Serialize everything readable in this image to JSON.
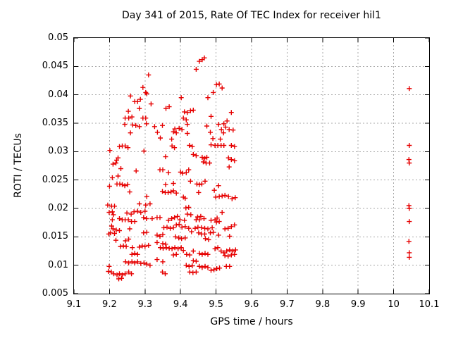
{
  "colors": {
    "marker": "#e60000",
    "grid": "#a8a8a8",
    "axis": "#000000",
    "text": "#000000",
    "background": "#ffffff"
  },
  "chart_data": {
    "type": "scatter",
    "title": "Day 341 of 2015, Rate Of TEC Index for receiver hil1",
    "xlabel": "GPS time / hours",
    "ylabel": "ROTI / TECUs",
    "xlim": [
      9.1,
      10.1
    ],
    "ylim": [
      0.005,
      0.05
    ],
    "grid": true,
    "legend": "none",
    "marker": "plus",
    "xticks": [
      {
        "v": 9.1,
        "label": "9.1"
      },
      {
        "v": 9.2,
        "label": "9.2"
      },
      {
        "v": 9.3,
        "label": "9.3"
      },
      {
        "v": 9.4,
        "label": "9.4"
      },
      {
        "v": 9.5,
        "label": "9.5"
      },
      {
        "v": 9.6,
        "label": "9.6"
      },
      {
        "v": 9.7,
        "label": "9.7"
      },
      {
        "v": 9.8,
        "label": "9.8"
      },
      {
        "v": 9.9,
        "label": "9.9"
      },
      {
        "v": 10.0,
        "label": "10"
      },
      {
        "v": 10.1,
        "label": "10.1"
      }
    ],
    "yticks": [
      {
        "v": 0.005,
        "label": "0.005"
      },
      {
        "v": 0.01,
        "label": "0.01"
      },
      {
        "v": 0.015,
        "label": "0.015"
      },
      {
        "v": 0.02,
        "label": "0.02"
      },
      {
        "v": 0.025,
        "label": "0.025"
      },
      {
        "v": 0.03,
        "label": "0.03"
      },
      {
        "v": 0.035,
        "label": "0.035"
      },
      {
        "v": 0.04,
        "label": "0.04"
      },
      {
        "v": 0.045,
        "label": "0.045"
      },
      {
        "v": 0.05,
        "label": "0.05"
      }
    ],
    "points": [
      [
        9.31,
        0.0435
      ],
      [
        9.294,
        0.0413
      ],
      [
        9.302,
        0.0404
      ],
      [
        9.305,
        0.0402
      ],
      [
        9.259,
        0.0398
      ],
      [
        9.271,
        0.0388
      ],
      [
        9.279,
        0.0388
      ],
      [
        9.287,
        0.0392
      ],
      [
        9.317,
        0.0384
      ],
      [
        9.284,
        0.0376
      ],
      [
        9.253,
        0.0371
      ],
      [
        9.244,
        0.0359
      ],
      [
        9.254,
        0.0359
      ],
      [
        9.263,
        0.0361
      ],
      [
        9.294,
        0.0359
      ],
      [
        9.302,
        0.0359
      ],
      [
        9.453,
        0.0459
      ],
      [
        9.461,
        0.0462
      ],
      [
        9.467,
        0.0465
      ],
      [
        9.444,
        0.0445
      ],
      [
        9.501,
        0.0418
      ],
      [
        9.509,
        0.0419
      ],
      [
        9.517,
        0.0412
      ],
      [
        9.492,
        0.0404
      ],
      [
        9.477,
        0.0395
      ],
      [
        9.402,
        0.0395
      ],
      [
        9.359,
        0.0376
      ],
      [
        9.368,
        0.0379
      ],
      [
        9.411,
        0.037
      ],
      [
        9.419,
        0.0369
      ],
      [
        9.428,
        0.0372
      ],
      [
        9.436,
        0.0373
      ],
      [
        9.486,
        0.0362
      ],
      [
        9.543,
        0.0369
      ],
      [
        9.408,
        0.0359
      ],
      [
        9.416,
        0.0356
      ],
      [
        9.531,
        0.0354
      ],
      [
        9.243,
        0.0348
      ],
      [
        9.265,
        0.0347
      ],
      [
        9.274,
        0.0346
      ],
      [
        9.284,
        0.0344
      ],
      [
        9.304,
        0.0349
      ],
      [
        9.259,
        0.0333
      ],
      [
        9.201,
        0.0302
      ],
      [
        9.228,
        0.0309
      ],
      [
        9.236,
        0.031
      ],
      [
        9.244,
        0.031
      ],
      [
        9.252,
        0.0307
      ],
      [
        9.297,
        0.0301
      ],
      [
        9.22,
        0.0285
      ],
      [
        9.21,
        0.0278
      ],
      [
        9.218,
        0.028
      ],
      [
        9.224,
        0.0289
      ],
      [
        9.232,
        0.027
      ],
      [
        9.275,
        0.0266
      ],
      [
        9.208,
        0.0254
      ],
      [
        9.224,
        0.0257
      ],
      [
        9.221,
        0.0243
      ],
      [
        9.229,
        0.0243
      ],
      [
        9.236,
        0.0242
      ],
      [
        9.243,
        0.024
      ],
      [
        9.251,
        0.0242
      ],
      [
        9.2,
        0.0239
      ],
      [
        9.257,
        0.0229
      ],
      [
        9.305,
        0.0221
      ],
      [
        9.195,
        0.0206
      ],
      [
        9.206,
        0.0204
      ],
      [
        9.214,
        0.0204
      ],
      [
        9.284,
        0.0208
      ],
      [
        9.302,
        0.0206
      ],
      [
        9.314,
        0.0208
      ],
      [
        9.335,
        0.0334
      ],
      [
        9.343,
        0.0324
      ],
      [
        9.38,
        0.0335
      ],
      [
        9.388,
        0.0333
      ],
      [
        9.384,
        0.034
      ],
      [
        9.396,
        0.0341
      ],
      [
        9.419,
        0.0348
      ],
      [
        9.474,
        0.0345
      ],
      [
        9.484,
        0.0334
      ],
      [
        9.507,
        0.0348
      ],
      [
        9.522,
        0.0349
      ],
      [
        9.527,
        0.0343
      ],
      [
        9.537,
        0.0339
      ],
      [
        9.521,
        0.0333
      ],
      [
        9.548,
        0.0338
      ],
      [
        9.375,
        0.0322
      ],
      [
        9.491,
        0.0323
      ],
      [
        9.512,
        0.0322
      ],
      [
        9.349,
        0.0346
      ],
      [
        9.327,
        0.0344
      ],
      [
        9.515,
        0.0339
      ],
      [
        9.404,
        0.0339
      ],
      [
        9.419,
        0.0332
      ],
      [
        9.376,
        0.031
      ],
      [
        9.383,
        0.0307
      ],
      [
        9.425,
        0.0311
      ],
      [
        9.433,
        0.0309
      ],
      [
        9.486,
        0.0312
      ],
      [
        9.497,
        0.0311
      ],
      [
        9.505,
        0.0311
      ],
      [
        9.514,
        0.0311
      ],
      [
        9.522,
        0.0311
      ],
      [
        9.543,
        0.0311
      ],
      [
        9.552,
        0.0309
      ],
      [
        9.358,
        0.0291
      ],
      [
        9.436,
        0.0295
      ],
      [
        9.444,
        0.0293
      ],
      [
        9.461,
        0.029
      ],
      [
        9.468,
        0.0288
      ],
      [
        9.474,
        0.029
      ],
      [
        9.464,
        0.0282
      ],
      [
        9.472,
        0.028
      ],
      [
        9.482,
        0.028
      ],
      [
        9.535,
        0.0289
      ],
      [
        9.543,
        0.0286
      ],
      [
        9.552,
        0.0284
      ],
      [
        9.537,
        0.0273
      ],
      [
        9.342,
        0.0268
      ],
      [
        9.35,
        0.0268
      ],
      [
        9.366,
        0.0263
      ],
      [
        9.4,
        0.0264
      ],
      [
        9.406,
        0.0262
      ],
      [
        9.416,
        0.0263
      ],
      [
        9.423,
        0.0268
      ],
      [
        9.428,
        0.0248
      ],
      [
        9.446,
        0.0243
      ],
      [
        9.453,
        0.0242
      ],
      [
        9.46,
        0.0243
      ],
      [
        9.469,
        0.0248
      ],
      [
        9.358,
        0.0242
      ],
      [
        9.38,
        0.0244
      ],
      [
        9.349,
        0.023
      ],
      [
        9.357,
        0.0228
      ],
      [
        9.365,
        0.0228
      ],
      [
        9.373,
        0.0229
      ],
      [
        9.38,
        0.0231
      ],
      [
        9.388,
        0.0227
      ],
      [
        9.408,
        0.022
      ],
      [
        9.413,
        0.0218
      ],
      [
        9.451,
        0.0228
      ],
      [
        9.495,
        0.0232
      ],
      [
        9.507,
        0.024
      ],
      [
        9.499,
        0.022
      ],
      [
        9.509,
        0.0221
      ],
      [
        9.517,
        0.0222
      ],
      [
        9.525,
        0.0223
      ],
      [
        9.535,
        0.0221
      ],
      [
        9.545,
        0.0217
      ],
      [
        9.554,
        0.0219
      ],
      [
        9.415,
        0.0201
      ],
      [
        9.423,
        0.0202
      ],
      [
        9.199,
        0.0193
      ],
      [
        9.208,
        0.0194
      ],
      [
        9.211,
        0.0189
      ],
      [
        9.249,
        0.0192
      ],
      [
        9.261,
        0.019
      ],
      [
        9.269,
        0.0194
      ],
      [
        9.279,
        0.0195
      ],
      [
        9.288,
        0.0193
      ],
      [
        9.3,
        0.0195
      ],
      [
        9.296,
        0.0184
      ],
      [
        9.304,
        0.0182
      ],
      [
        9.228,
        0.0182
      ],
      [
        9.236,
        0.018
      ],
      [
        9.244,
        0.018
      ],
      [
        9.253,
        0.018
      ],
      [
        9.262,
        0.0177
      ],
      [
        9.271,
        0.0177
      ],
      [
        9.208,
        0.018
      ],
      [
        9.206,
        0.0169
      ],
      [
        9.21,
        0.0164
      ],
      [
        9.219,
        0.0162
      ],
      [
        9.228,
        0.0161
      ],
      [
        9.257,
        0.0164
      ],
      [
        9.198,
        0.0155
      ],
      [
        9.203,
        0.0157
      ],
      [
        9.214,
        0.0156
      ],
      [
        9.296,
        0.0157
      ],
      [
        9.305,
        0.0158
      ],
      [
        9.32,
        0.0182
      ],
      [
        9.218,
        0.0144
      ],
      [
        9.245,
        0.0143
      ],
      [
        9.254,
        0.0146
      ],
      [
        9.231,
        0.0133
      ],
      [
        9.239,
        0.0134
      ],
      [
        9.247,
        0.0133
      ],
      [
        9.264,
        0.0131
      ],
      [
        9.284,
        0.0132
      ],
      [
        9.292,
        0.0134
      ],
      [
        9.3,
        0.0133
      ],
      [
        9.31,
        0.0135
      ],
      [
        9.263,
        0.0119
      ],
      [
        9.271,
        0.0121
      ],
      [
        9.279,
        0.0119
      ],
      [
        9.245,
        0.0106
      ],
      [
        9.254,
        0.0104
      ],
      [
        9.263,
        0.0106
      ],
      [
        9.271,
        0.0104
      ],
      [
        9.279,
        0.0106
      ],
      [
        9.288,
        0.0103
      ],
      [
        9.297,
        0.0104
      ],
      [
        9.305,
        0.0102
      ],
      [
        9.314,
        0.01
      ],
      [
        9.199,
        0.0098
      ],
      [
        9.197,
        0.0089
      ],
      [
        9.205,
        0.0088
      ],
      [
        9.212,
        0.0085
      ],
      [
        9.221,
        0.0083
      ],
      [
        9.228,
        0.0085
      ],
      [
        9.236,
        0.0083
      ],
      [
        9.244,
        0.0085
      ],
      [
        9.254,
        0.0088
      ],
      [
        9.262,
        0.0085
      ],
      [
        9.226,
        0.0076
      ],
      [
        9.234,
        0.0077
      ],
      [
        9.334,
        0.0184
      ],
      [
        9.342,
        0.0184
      ],
      [
        9.366,
        0.0179
      ],
      [
        9.375,
        0.0182
      ],
      [
        9.383,
        0.0184
      ],
      [
        9.391,
        0.0186
      ],
      [
        9.398,
        0.018
      ],
      [
        9.411,
        0.0179
      ],
      [
        9.419,
        0.019
      ],
      [
        9.429,
        0.0189
      ],
      [
        9.444,
        0.018
      ],
      [
        9.453,
        0.018
      ],
      [
        9.448,
        0.0185
      ],
      [
        9.457,
        0.0186
      ],
      [
        9.466,
        0.0182
      ],
      [
        9.486,
        0.0179
      ],
      [
        9.497,
        0.018
      ],
      [
        9.503,
        0.0183
      ],
      [
        9.501,
        0.0176
      ],
      [
        9.509,
        0.0177
      ],
      [
        9.517,
        0.0193
      ],
      [
        9.353,
        0.0166
      ],
      [
        9.362,
        0.0167
      ],
      [
        9.371,
        0.0165
      ],
      [
        9.38,
        0.0166
      ],
      [
        9.388,
        0.0171
      ],
      [
        9.396,
        0.0172
      ],
      [
        9.404,
        0.0167
      ],
      [
        9.413,
        0.0168
      ],
      [
        9.423,
        0.0165
      ],
      [
        9.431,
        0.0159
      ],
      [
        9.441,
        0.0165
      ],
      [
        9.449,
        0.0167
      ],
      [
        9.459,
        0.0166
      ],
      [
        9.468,
        0.0165
      ],
      [
        9.477,
        0.0164
      ],
      [
        9.489,
        0.0166
      ],
      [
        9.525,
        0.0164
      ],
      [
        9.534,
        0.0165
      ],
      [
        9.543,
        0.0168
      ],
      [
        9.552,
        0.0171
      ],
      [
        9.334,
        0.0153
      ],
      [
        9.342,
        0.0151
      ],
      [
        9.35,
        0.0154
      ],
      [
        9.386,
        0.015
      ],
      [
        9.395,
        0.0148
      ],
      [
        9.403,
        0.0147
      ],
      [
        9.413,
        0.0148
      ],
      [
        9.451,
        0.0157
      ],
      [
        9.459,
        0.0155
      ],
      [
        9.468,
        0.0155
      ],
      [
        9.484,
        0.0157
      ],
      [
        9.492,
        0.0158
      ],
      [
        9.47,
        0.0147
      ],
      [
        9.479,
        0.0145
      ],
      [
        9.507,
        0.0153
      ],
      [
        9.538,
        0.0151
      ],
      [
        9.334,
        0.014
      ],
      [
        9.35,
        0.0138
      ],
      [
        9.358,
        0.0137
      ],
      [
        9.343,
        0.0131
      ],
      [
        9.351,
        0.013
      ],
      [
        9.36,
        0.0131
      ],
      [
        9.368,
        0.013
      ],
      [
        9.376,
        0.0129
      ],
      [
        9.384,
        0.0131
      ],
      [
        9.393,
        0.0129
      ],
      [
        9.402,
        0.0131
      ],
      [
        9.408,
        0.0126
      ],
      [
        9.417,
        0.0119
      ],
      [
        9.426,
        0.0118
      ],
      [
        9.38,
        0.0118
      ],
      [
        9.388,
        0.0119
      ],
      [
        9.436,
        0.0125
      ],
      [
        9.453,
        0.0121
      ],
      [
        9.461,
        0.0119
      ],
      [
        9.469,
        0.0121
      ],
      [
        9.477,
        0.0119
      ],
      [
        9.497,
        0.0129
      ],
      [
        9.505,
        0.0131
      ],
      [
        9.514,
        0.0125
      ],
      [
        9.522,
        0.0122
      ],
      [
        9.53,
        0.0125
      ],
      [
        9.538,
        0.0127
      ],
      [
        9.547,
        0.0125
      ],
      [
        9.555,
        0.0127
      ],
      [
        9.525,
        0.0117
      ],
      [
        9.534,
        0.0116
      ],
      [
        9.543,
        0.0118
      ],
      [
        9.552,
        0.0119
      ],
      [
        9.436,
        0.0108
      ],
      [
        9.444,
        0.0107
      ],
      [
        9.35,
        0.0106
      ],
      [
        9.334,
        0.011
      ],
      [
        9.416,
        0.01
      ],
      [
        9.424,
        0.0098
      ],
      [
        9.433,
        0.0099
      ],
      [
        9.453,
        0.0098
      ],
      [
        9.461,
        0.0096
      ],
      [
        9.469,
        0.0098
      ],
      [
        9.477,
        0.0096
      ],
      [
        9.486,
        0.0091
      ],
      [
        9.494,
        0.0092
      ],
      [
        9.502,
        0.0094
      ],
      [
        9.51,
        0.0095
      ],
      [
        9.529,
        0.0098
      ],
      [
        9.538,
        0.0098
      ],
      [
        9.349,
        0.0088
      ],
      [
        9.357,
        0.0085
      ],
      [
        9.426,
        0.0088
      ],
      [
        9.435,
        0.0087
      ],
      [
        9.444,
        0.0088
      ],
      [
        10.044,
        0.0411
      ],
      [
        10.044,
        0.0311
      ],
      [
        10.043,
        0.0286
      ],
      [
        10.044,
        0.028
      ],
      [
        10.043,
        0.0205
      ],
      [
        10.044,
        0.02
      ],
      [
        10.044,
        0.0177
      ],
      [
        10.043,
        0.0142
      ],
      [
        10.044,
        0.0122
      ],
      [
        10.044,
        0.0114
      ]
    ]
  }
}
